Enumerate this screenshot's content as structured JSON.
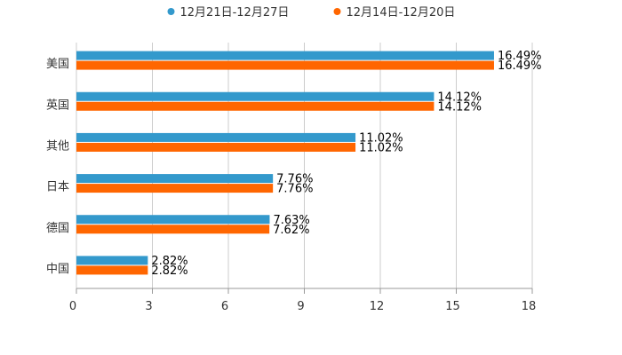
{
  "chart_data": {
    "type": "bar",
    "orientation": "horizontal",
    "categories": [
      "美国",
      "英国",
      "其他",
      "日本",
      "德国",
      "中国"
    ],
    "series": [
      {
        "name": "12月21日-12月27日",
        "color": "#3399cc",
        "values": [
          16.49,
          14.12,
          11.02,
          7.76,
          7.63,
          2.82
        ],
        "labels": [
          "16.49%",
          "14.12%",
          "11.02%",
          "7.76%",
          "7.63%",
          "2.82%"
        ]
      },
      {
        "name": "12月14日-12月20日",
        "color": "#ff6600",
        "values": [
          16.49,
          14.12,
          11.02,
          7.76,
          7.62,
          2.82
        ],
        "labels": [
          "16.49%",
          "14.12%",
          "11.02%",
          "7.76%",
          "7.62%",
          "2.82%"
        ]
      }
    ],
    "xlim": [
      0,
      18
    ],
    "xticks": [
      "0",
      "3",
      "6",
      "9",
      "12",
      "15",
      "18"
    ],
    "grid": true,
    "legend_position": "top-center",
    "title": "",
    "xlabel": "",
    "ylabel": ""
  }
}
